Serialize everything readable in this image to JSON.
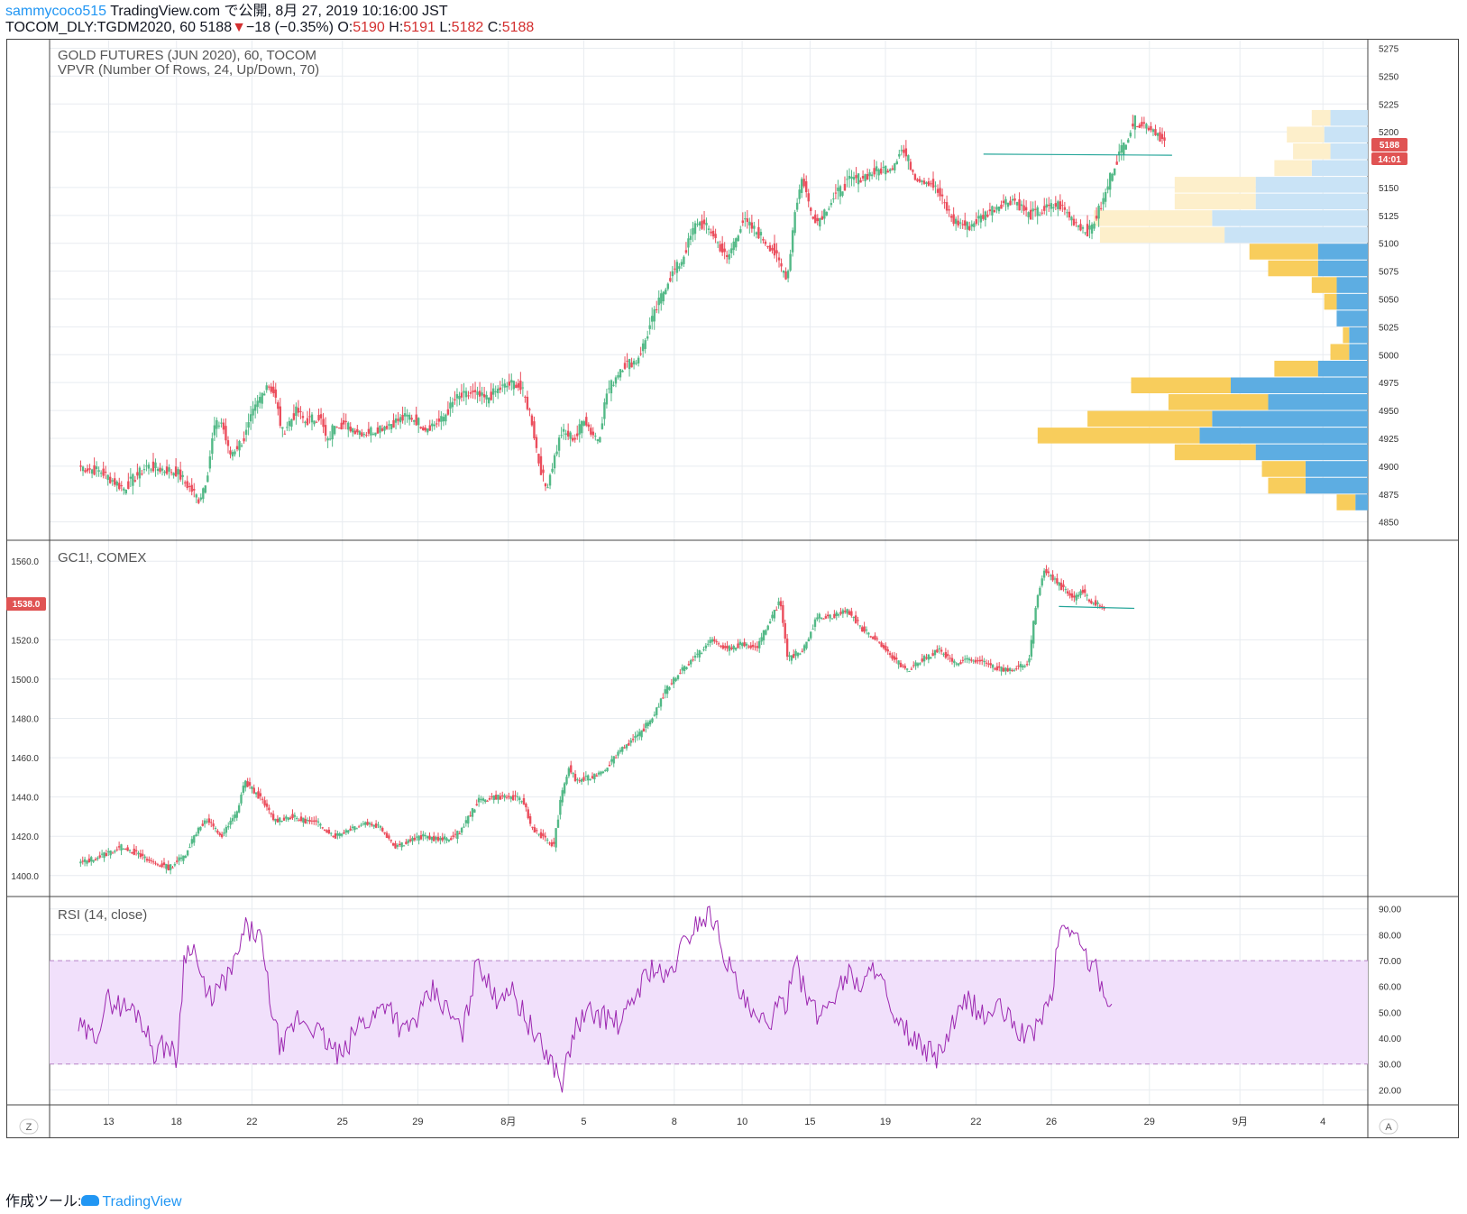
{
  "header": {
    "line1_user": "sammycoco515",
    "line1_rest": " TradingView.com で公開, 8月 27, 2019 10:16:00 JST",
    "symbol": "TOCOM_DLY:TGDM2020, 60",
    "last": "5188",
    "arrow": "▼",
    "change": "−18 (−0.35%)",
    "o_label": "O:",
    "o_value": "5190",
    "h_label": "H:",
    "h_value": "5191",
    "l_label": "L:",
    "l_value": "5182",
    "c_label": "C:",
    "c_value": "5188"
  },
  "footer": {
    "label": "作成ツール:",
    "brand": "TradingView"
  },
  "colors": {
    "up": "#53b987",
    "down": "#eb4d5c",
    "vol_up": "#5dade2",
    "vol_down": "#f8cd5c",
    "vol_up_faint": "#c9e3f6",
    "vol_down_faint": "#fdefcb",
    "rsi": "#9c27b0",
    "rsi_band": "#f1e0fb",
    "price_tag": "#e05353",
    "trendline": "#26a69a"
  },
  "chart_data": [
    {
      "type": "candlestick",
      "title": "GOLD FUTURES (JUN 2020), 60, TOCOM",
      "indicator": "VPVR (Number Of Rows, 24, Up/Down, 70)",
      "y_ticks": [
        5275,
        5250,
        5225,
        5200,
        5150,
        5125,
        5100,
        5075,
        5050,
        5025,
        5000,
        4975,
        4950,
        4925,
        4900,
        4875,
        4850
      ],
      "ylim": [
        4840,
        5277
      ],
      "price_tag": "5188",
      "time_tag": "14:01",
      "path": [
        [
          0,
          4900
        ],
        [
          3,
          4895
        ],
        [
          6,
          4880
        ],
        [
          9,
          4900
        ],
        [
          13,
          4895
        ],
        [
          16,
          4870
        ],
        [
          17,
          4890
        ],
        [
          18,
          4935
        ],
        [
          19,
          4940
        ],
        [
          20,
          4910
        ],
        [
          22,
          4925
        ],
        [
          23,
          4945
        ],
        [
          24,
          4960
        ],
        [
          25,
          4975
        ],
        [
          26,
          4965
        ],
        [
          27,
          4930
        ],
        [
          29,
          4950
        ],
        [
          30,
          4940
        ],
        [
          32,
          4945
        ],
        [
          33,
          4920
        ],
        [
          34,
          4940
        ],
        [
          36,
          4935
        ],
        [
          38,
          4930
        ],
        [
          40,
          4935
        ],
        [
          42,
          4940
        ],
        [
          44,
          4945
        ],
        [
          46,
          4935
        ],
        [
          48,
          4940
        ],
        [
          50,
          4960
        ],
        [
          52,
          4965
        ],
        [
          54,
          4960
        ],
        [
          56,
          4970
        ],
        [
          58,
          4975
        ],
        [
          59,
          4965
        ],
        [
          60,
          4945
        ],
        [
          61,
          4905
        ],
        [
          62,
          4880
        ],
        [
          64,
          4930
        ],
        [
          66,
          4925
        ],
        [
          67,
          4945
        ],
        [
          68,
          4930
        ],
        [
          69,
          4925
        ],
        [
          70,
          4965
        ],
        [
          72,
          4990
        ],
        [
          74,
          4995
        ],
        [
          75,
          5010
        ],
        [
          76,
          5030
        ],
        [
          78,
          5065
        ],
        [
          80,
          5085
        ],
        [
          82,
          5120
        ],
        [
          84,
          5110
        ],
        [
          86,
          5085
        ],
        [
          88,
          5120
        ],
        [
          90,
          5110
        ],
        [
          92,
          5095
        ],
        [
          93,
          5080
        ],
        [
          94,
          5070
        ],
        [
          95,
          5130
        ],
        [
          96,
          5160
        ],
        [
          97,
          5130
        ],
        [
          98,
          5120
        ],
        [
          100,
          5140
        ],
        [
          102,
          5155
        ],
        [
          104,
          5160
        ],
        [
          106,
          5165
        ],
        [
          108,
          5170
        ],
        [
          109,
          5185
        ],
        [
          110,
          5175
        ],
        [
          111,
          5160
        ],
        [
          113,
          5155
        ],
        [
          114,
          5145
        ],
        [
          116,
          5120
        ],
        [
          118,
          5115
        ],
        [
          120,
          5125
        ],
        [
          122,
          5135
        ],
        [
          124,
          5140
        ],
        [
          126,
          5125
        ],
        [
          128,
          5130
        ],
        [
          130,
          5135
        ],
        [
          132,
          5120
        ],
        [
          134,
          5110
        ],
        [
          135,
          5125
        ],
        [
          136,
          5140
        ],
        [
          137,
          5165
        ],
        [
          138,
          5180
        ],
        [
          140,
          5210
        ],
        [
          142,
          5205
        ],
        [
          143,
          5200
        ],
        [
          144,
          5190
        ]
      ],
      "trendline": [
        [
          120,
          5180
        ],
        [
          145,
          5179
        ]
      ],
      "x_ticks": [
        [
          4,
          "13"
        ],
        [
          13,
          "18"
        ],
        [
          23,
          "22"
        ],
        [
          35,
          "25"
        ],
        [
          45,
          "29"
        ],
        [
          57,
          "8月"
        ],
        [
          67,
          "5"
        ],
        [
          79,
          "8"
        ],
        [
          88,
          "10"
        ],
        [
          97,
          "15"
        ],
        [
          107,
          "19"
        ],
        [
          119,
          "22"
        ],
        [
          129,
          "26"
        ],
        [
          142,
          "29"
        ],
        [
          154,
          "9月"
        ],
        [
          165,
          "4"
        ]
      ],
      "volume_profile": [
        {
          "price": 5212.5,
          "up": 6,
          "down": 3,
          "faint": true
        },
        {
          "price": 5197.5,
          "up": 7,
          "down": 6,
          "faint": true
        },
        {
          "price": 5182.5,
          "up": 6,
          "down": 6,
          "faint": true
        },
        {
          "price": 5167.5,
          "up": 9,
          "down": 6,
          "faint": true
        },
        {
          "price": 5152.5,
          "up": 18,
          "down": 13,
          "faint": true
        },
        {
          "price": 5137.5,
          "up": 18,
          "down": 13,
          "faint": true
        },
        {
          "price": 5122.5,
          "up": 25,
          "down": 19,
          "faint": true
        },
        {
          "price": 5107.5,
          "up": 23,
          "down": 20,
          "faint": true
        },
        {
          "price": 5092.5,
          "up": 8,
          "down": 11,
          "faint": false
        },
        {
          "price": 5077.5,
          "up": 8,
          "down": 8,
          "faint": false
        },
        {
          "price": 5062.5,
          "up": 5,
          "down": 4,
          "faint": false
        },
        {
          "price": 5047.5,
          "up": 5,
          "down": 2,
          "faint": false
        },
        {
          "price": 5032.5,
          "up": 5,
          "down": 0,
          "faint": false
        },
        {
          "price": 5017.5,
          "up": 3,
          "down": 1,
          "faint": false
        },
        {
          "price": 5002.5,
          "up": 3,
          "down": 3,
          "faint": false
        },
        {
          "price": 4987.5,
          "up": 8,
          "down": 7,
          "faint": false
        },
        {
          "price": 4972.5,
          "up": 22,
          "down": 16,
          "faint": false
        },
        {
          "price": 4957.5,
          "up": 16,
          "down": 16,
          "faint": false
        },
        {
          "price": 4942.5,
          "up": 25,
          "down": 20,
          "faint": false
        },
        {
          "price": 4927.5,
          "up": 27,
          "down": 26,
          "faint": false
        },
        {
          "price": 4912.5,
          "up": 18,
          "down": 13,
          "faint": false
        },
        {
          "price": 4897.5,
          "up": 10,
          "down": 7,
          "faint": false
        },
        {
          "price": 4882.5,
          "up": 10,
          "down": 6,
          "faint": false
        },
        {
          "price": 4867.5,
          "up": 2,
          "down": 3,
          "faint": false
        }
      ]
    },
    {
      "type": "candlestick",
      "title": "GC1!, COMEX",
      "y_ticks": [
        1560.0,
        1520.0,
        1500.0,
        1480.0,
        1460.0,
        1440.0,
        1420.0,
        1400.0
      ],
      "y_tick_labels": [
        "1560.0",
        "1520.0",
        "1500.0",
        "1480.0",
        "1460.0",
        "1440.0",
        "1420.0",
        "1400.0"
      ],
      "ylim": [
        1393,
        1567
      ],
      "price_tag": "1538.0",
      "price_tag_value": 1538.0,
      "path": [
        [
          0,
          1406
        ],
        [
          3,
          1410
        ],
        [
          6,
          1415
        ],
        [
          9,
          1408
        ],
        [
          12,
          1404
        ],
        [
          14,
          1410
        ],
        [
          16,
          1425
        ],
        [
          17,
          1428
        ],
        [
          19,
          1420
        ],
        [
          21,
          1432
        ],
        [
          22,
          1448
        ],
        [
          24,
          1440
        ],
        [
          26,
          1428
        ],
        [
          28,
          1430
        ],
        [
          30,
          1428
        ],
        [
          32,
          1426
        ],
        [
          34,
          1420
        ],
        [
          36,
          1424
        ],
        [
          38,
          1427
        ],
        [
          40,
          1425
        ],
        [
          42,
          1415
        ],
        [
          44,
          1418
        ],
        [
          46,
          1420
        ],
        [
          48,
          1418
        ],
        [
          50,
          1420
        ],
        [
          51,
          1425
        ],
        [
          53,
          1438
        ],
        [
          55,
          1440
        ],
        [
          57,
          1440
        ],
        [
          59,
          1438
        ],
        [
          60,
          1425
        ],
        [
          62,
          1418
        ],
        [
          63,
          1415
        ],
        [
          64,
          1440
        ],
        [
          65,
          1455
        ],
        [
          66,
          1448
        ],
        [
          68,
          1450
        ],
        [
          70,
          1455
        ],
        [
          72,
          1465
        ],
        [
          74,
          1470
        ],
        [
          76,
          1480
        ],
        [
          78,
          1495
        ],
        [
          80,
          1505
        ],
        [
          82,
          1512
        ],
        [
          84,
          1520
        ],
        [
          86,
          1515
        ],
        [
          88,
          1518
        ],
        [
          90,
          1515
        ],
        [
          91,
          1525
        ],
        [
          93,
          1540
        ],
        [
          94,
          1510
        ],
        [
          96,
          1515
        ],
        [
          98,
          1532
        ],
        [
          100,
          1532
        ],
        [
          102,
          1535
        ],
        [
          104,
          1525
        ],
        [
          106,
          1520
        ],
        [
          108,
          1510
        ],
        [
          110,
          1505
        ],
        [
          112,
          1510
        ],
        [
          114,
          1515
        ],
        [
          116,
          1508
        ],
        [
          118,
          1510
        ],
        [
          120,
          1508
        ],
        [
          122,
          1505
        ],
        [
          124,
          1505
        ],
        [
          126,
          1508
        ],
        [
          127,
          1540
        ],
        [
          128,
          1555
        ],
        [
          130,
          1548
        ],
        [
          132,
          1540
        ],
        [
          133,
          1545
        ],
        [
          134,
          1540
        ],
        [
          136,
          1536
        ]
      ],
      "trendline": [
        [
          130,
          1537
        ],
        [
          140,
          1536
        ]
      ]
    },
    {
      "type": "line",
      "title": "RSI (14, close)",
      "y_ticks": [
        90.0,
        80.0,
        70.0,
        60.0,
        50.0,
        40.0,
        30.0,
        20.0
      ],
      "y_tick_labels": [
        "90.00",
        "80.00",
        "70.00",
        "60.00",
        "50.00",
        "40.00",
        "30.00",
        "20.00"
      ],
      "ylim": [
        17,
        92
      ],
      "band": [
        30,
        70
      ],
      "path": [
        [
          0,
          44
        ],
        [
          2,
          40
        ],
        [
          4,
          55
        ],
        [
          6,
          52
        ],
        [
          8,
          50
        ],
        [
          10,
          35
        ],
        [
          12,
          38
        ],
        [
          13,
          30
        ],
        [
          14,
          70
        ],
        [
          15,
          78
        ],
        [
          17,
          55
        ],
        [
          19,
          60
        ],
        [
          21,
          70
        ],
        [
          22,
          82
        ],
        [
          24,
          80
        ],
        [
          26,
          45
        ],
        [
          27,
          35
        ],
        [
          29,
          48
        ],
        [
          31,
          45
        ],
        [
          33,
          38
        ],
        [
          35,
          32
        ],
        [
          37,
          45
        ],
        [
          39,
          48
        ],
        [
          41,
          55
        ],
        [
          43,
          42
        ],
        [
          45,
          48
        ],
        [
          47,
          58
        ],
        [
          49,
          50
        ],
        [
          51,
          42
        ],
        [
          53,
          72
        ],
        [
          55,
          55
        ],
        [
          57,
          60
        ],
        [
          59,
          50
        ],
        [
          61,
          38
        ],
        [
          63,
          30
        ],
        [
          64,
          22
        ],
        [
          66,
          45
        ],
        [
          68,
          50
        ],
        [
          70,
          48
        ],
        [
          72,
          45
        ],
        [
          74,
          58
        ],
        [
          76,
          68
        ],
        [
          78,
          62
        ],
        [
          80,
          75
        ],
        [
          82,
          85
        ],
        [
          84,
          88
        ],
        [
          86,
          70
        ],
        [
          88,
          55
        ],
        [
          90,
          45
        ],
        [
          92,
          48
        ],
        [
          94,
          55
        ],
        [
          95,
          75
        ],
        [
          96,
          60
        ],
        [
          98,
          48
        ],
        [
          100,
          56
        ],
        [
          102,
          65
        ],
        [
          104,
          60
        ],
        [
          106,
          70
        ],
        [
          108,
          45
        ],
        [
          110,
          42
        ],
        [
          112,
          35
        ],
        [
          114,
          33
        ],
        [
          116,
          45
        ],
        [
          118,
          55
        ],
        [
          120,
          48
        ],
        [
          122,
          52
        ],
        [
          124,
          45
        ],
        [
          126,
          40
        ],
        [
          128,
          50
        ],
        [
          129,
          55
        ],
        [
          130,
          80
        ],
        [
          131,
          85
        ],
        [
          133,
          75
        ],
        [
          134,
          70
        ],
        [
          136,
          60
        ],
        [
          137,
          50
        ]
      ]
    }
  ],
  "corner_left": "Z",
  "corner_right": "A"
}
